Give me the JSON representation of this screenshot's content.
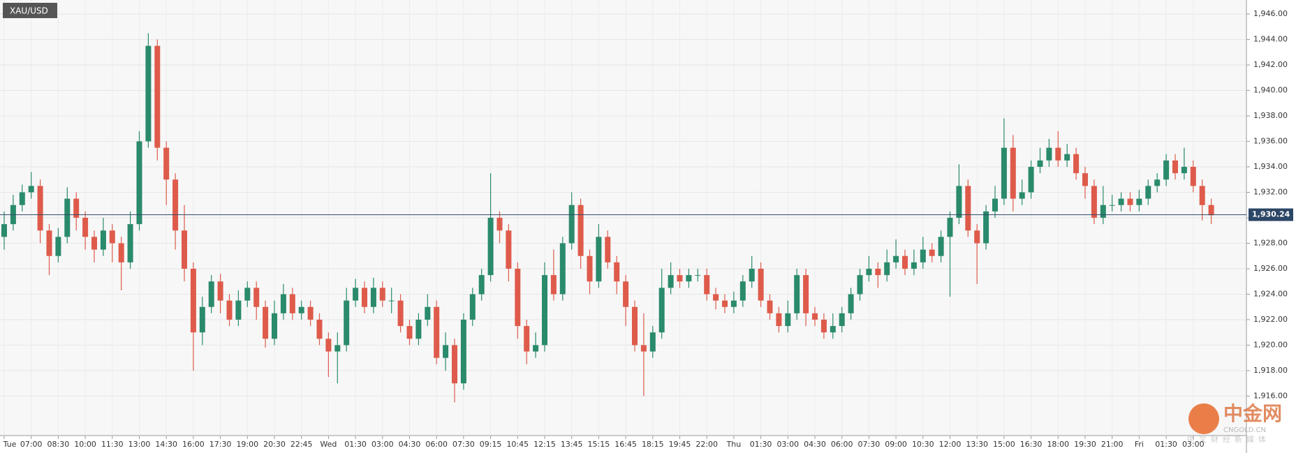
{
  "chart_data": {
    "type": "candlestick",
    "symbol": "XAU/USD",
    "categories": [
      "Tue",
      null,
      null,
      "07:00",
      null,
      null,
      "08:30",
      null,
      null,
      "10:00",
      null,
      null,
      "11:30",
      null,
      null,
      "13:00",
      null,
      null,
      "14:30",
      null,
      null,
      "16:00",
      null,
      null,
      "17:30",
      null,
      null,
      "19:00",
      null,
      null,
      "20:30",
      null,
      null,
      "22:45",
      null,
      null,
      "Wed",
      null,
      null,
      "01:30",
      null,
      null,
      "03:00",
      null,
      null,
      "04:30",
      null,
      null,
      "06:00",
      null,
      null,
      "07:30",
      null,
      null,
      "09:15",
      null,
      null,
      "10:45",
      null,
      null,
      "12:15",
      null,
      null,
      "13:45",
      null,
      null,
      "15:15",
      null,
      null,
      "16:45",
      null,
      null,
      "18:15",
      null,
      null,
      "19:45",
      null,
      null,
      "22:00",
      null,
      null,
      "Thu",
      null,
      null,
      "01:30",
      null,
      null,
      "03:00",
      null,
      null,
      "04:30",
      null,
      null,
      "06:00",
      null,
      null,
      "07:30",
      null,
      null,
      "09:00",
      null,
      null,
      "10:30",
      null,
      null,
      "12:00",
      null,
      null,
      "13:30",
      null,
      null,
      "15:00",
      null,
      null,
      "16:30",
      null,
      null,
      "18:00",
      null,
      null,
      "19:30",
      null,
      null,
      "21:00",
      null,
      null,
      "Fri",
      null,
      null,
      "01:30",
      null,
      null,
      "03:00",
      null,
      null
    ],
    "open": [
      1928.5,
      1929.5,
      1931,
      1932,
      1932.5,
      1929,
      1927,
      1928.5,
      1931.5,
      1930,
      1928.5,
      1927.5,
      1929,
      1928,
      1926.5,
      1929.5,
      1936,
      1943.5,
      1935.5,
      1933,
      1929,
      1926,
      1921,
      1923,
      1925,
      1923.5,
      1922,
      1923.5,
      1924.5,
      1923,
      1920.5,
      1922.5,
      1924,
      1922.5,
      1923,
      1922,
      1920.5,
      1919.5,
      1920,
      1923.5,
      1924.5,
      1923,
      1924.5,
      1923.5,
      1923.5,
      1921.5,
      1920.5,
      1922,
      1923,
      1919,
      1920,
      1917,
      1922,
      1924,
      1925.5,
      1930,
      1929,
      1926,
      1921.5,
      1919.5,
      1920,
      1925.5,
      1924,
      1928,
      1931,
      1927,
      1925,
      1928.5,
      1926.5,
      1925,
      1923,
      1920,
      1919.5,
      1921,
      1924.5,
      1925.5,
      1925,
      1925.5,
      1925.5,
      1924,
      1923.5,
      1923,
      1923.5,
      1925,
      1926,
      1923.5,
      1922.5,
      1921.5,
      1922.5,
      1925.5,
      1922.5,
      1922,
      1921,
      1921.5,
      1922.5,
      1924,
      1925.5,
      1926,
      1925.5,
      1926.5,
      1927,
      1926,
      1926.5,
      1927.5,
      1927,
      1928.5,
      1930,
      1932.5,
      1929,
      1928,
      1930.5,
      1931.5,
      1935.5,
      1931.5,
      1932,
      1934,
      1934.5,
      1935.5,
      1934.5,
      1935,
      1933.5,
      1932.5,
      1930,
      1931,
      1931,
      1931.5,
      1931,
      1931.5,
      1932.5,
      1933,
      1934.5,
      1933.5,
      1934,
      1932.5,
      1931
    ],
    "high": [
      1930.5,
      1931.8,
      1932.6,
      1933.6,
      1933,
      1929.5,
      1929.2,
      1932.4,
      1932,
      1930.5,
      1929,
      1930,
      1929.5,
      1928.5,
      1930.5,
      1936.8,
      1944.5,
      1944,
      1936,
      1933.5,
      1931,
      1926.5,
      1923.8,
      1925.5,
      1925.6,
      1924,
      1924.3,
      1925,
      1925,
      1923.5,
      1923.5,
      1924.8,
      1924.5,
      1923.5,
      1923.5,
      1922.5,
      1921,
      1921,
      1924.5,
      1925.2,
      1925,
      1925.3,
      1925,
      1924.5,
      1924,
      1922,
      1922.5,
      1924,
      1923.5,
      1921,
      1920.5,
      1922.5,
      1924.5,
      1926,
      1933.5,
      1930.5,
      1929.5,
      1926.5,
      1922,
      1921,
      1926.5,
      1927.5,
      1928.5,
      1932,
      1931.5,
      1927.5,
      1929.5,
      1929,
      1927,
      1925.5,
      1923.5,
      1922.5,
      1921.5,
      1926,
      1926.5,
      1926,
      1926,
      1926,
      1926,
      1924.5,
      1924,
      1924.2,
      1925.5,
      1927,
      1926.5,
      1924,
      1923,
      1923.5,
      1926,
      1926,
      1923,
      1922.5,
      1922.5,
      1923,
      1924.5,
      1926,
      1927,
      1926.5,
      1927.5,
      1928.3,
      1927.5,
      1927.5,
      1928.5,
      1928,
      1929,
      1930.5,
      1934.2,
      1933,
      1929.5,
      1931,
      1932.5,
      1937.8,
      1936.5,
      1933,
      1934.5,
      1935.5,
      1936.2,
      1936.8,
      1935.8,
      1935.5,
      1934,
      1933,
      1932.5,
      1931.8,
      1932,
      1932,
      1932.2,
      1933,
      1933.5,
      1935,
      1935,
      1935.5,
      1934.5,
      1933,
      1931.5
    ],
    "low": [
      1927.5,
      1929,
      1930.5,
      1931.5,
      1928,
      1925.5,
      1926.5,
      1928,
      1929,
      1927.5,
      1926.5,
      1927,
      1926.5,
      1924.3,
      1926,
      1929,
      1935.5,
      1934.5,
      1931,
      1927.5,
      1925,
      1918,
      1920,
      1922.5,
      1922.5,
      1921.5,
      1921.5,
      1923,
      1922,
      1919.8,
      1920,
      1922,
      1922,
      1922,
      1921.5,
      1920,
      1917.5,
      1917,
      1919.5,
      1923,
      1922.5,
      1922.5,
      1923,
      1922.5,
      1921,
      1920,
      1920,
      1921.5,
      1918.5,
      1918,
      1915.5,
      1916.5,
      1921.5,
      1923.5,
      1925,
      1928,
      1925,
      1920.5,
      1918.5,
      1919,
      1919.5,
      1923.5,
      1923.5,
      1927.5,
      1926,
      1924,
      1924.5,
      1926,
      1924,
      1921.5,
      1919.5,
      1916,
      1919,
      1920.5,
      1924,
      1924.5,
      1924.5,
      1925,
      1923.5,
      1922.8,
      1922.5,
      1922.5,
      1923,
      1924.5,
      1923,
      1922,
      1921,
      1921,
      1922,
      1921.5,
      1921.5,
      1920.5,
      1920.5,
      1921,
      1922,
      1923.5,
      1925,
      1924.5,
      1925,
      1926,
      1925.5,
      1925.5,
      1926,
      1926.5,
      1926.5,
      1923.8,
      1929.5,
      1928.5,
      1924.8,
      1927.5,
      1930,
      1931,
      1930.5,
      1931,
      1931.5,
      1933.5,
      1934,
      1934,
      1934,
      1933,
      1931.5,
      1929.5,
      1929.5,
      1930.5,
      1930.5,
      1930.5,
      1930.5,
      1931,
      1932,
      1932.5,
      1933,
      1933,
      1932,
      1929.8,
      1929.5
    ],
    "close": [
      1929.5,
      1931,
      1932,
      1932.5,
      1929,
      1927,
      1928.5,
      1931.5,
      1930,
      1928.5,
      1927.5,
      1929,
      1928,
      1926.5,
      1929.5,
      1936,
      1943.5,
      1935.5,
      1933,
      1929,
      1926,
      1921,
      1923,
      1925,
      1923.5,
      1922,
      1923.5,
      1924.5,
      1923,
      1920.5,
      1922.5,
      1924,
      1922.5,
      1923,
      1922,
      1920.5,
      1919.5,
      1920,
      1923.5,
      1924.5,
      1923,
      1924.5,
      1923.5,
      1923.5,
      1921.5,
      1920.5,
      1922,
      1923,
      1919,
      1920,
      1917,
      1922,
      1924,
      1925.5,
      1930,
      1929,
      1926,
      1921.5,
      1919.5,
      1920,
      1925.5,
      1924,
      1928,
      1931,
      1927,
      1925,
      1928.5,
      1926.5,
      1925,
      1923,
      1920,
      1919.5,
      1921,
      1924.5,
      1925.5,
      1925,
      1925.5,
      1925.5,
      1924,
      1923.5,
      1923,
      1923.5,
      1925,
      1926,
      1923.5,
      1922.5,
      1921.5,
      1922.5,
      1925.5,
      1922.5,
      1922,
      1921,
      1921.5,
      1922.5,
      1924,
      1925.5,
      1926,
      1925.5,
      1926.5,
      1927,
      1926,
      1926.5,
      1927.5,
      1927,
      1928.5,
      1930,
      1932.5,
      1929,
      1928,
      1930.5,
      1931.5,
      1935.5,
      1931.5,
      1932,
      1934,
      1934.5,
      1935.5,
      1934.5,
      1935,
      1933.5,
      1932.5,
      1930,
      1931,
      1931,
      1931.5,
      1931,
      1931.5,
      1932.5,
      1933,
      1934.5,
      1933.5,
      1934,
      1932.5,
      1931,
      1930.2
    ],
    "up_color": "#2a8a6c",
    "down_color": "#de5b4b",
    "ylim": [
      1912.9,
      1947.1
    ],
    "yticks": [
      {
        "value": 1916,
        "label": "1,916.00"
      },
      {
        "value": 1918,
        "label": "1,918.00"
      },
      {
        "value": 1920,
        "label": "1,920.00"
      },
      {
        "value": 1922,
        "label": "1,922.00"
      },
      {
        "value": 1924,
        "label": "1,924.00"
      },
      {
        "value": 1926,
        "label": "1,926.00"
      },
      {
        "value": 1928,
        "label": "1,928.00"
      },
      {
        "value": 1930,
        "label": "1,930.00"
      },
      {
        "value": 1932,
        "label": "1,932.00"
      },
      {
        "value": 1934,
        "label": "1,934.00"
      },
      {
        "value": 1936,
        "label": "1,936.00"
      },
      {
        "value": 1938,
        "label": "1,938.00"
      },
      {
        "value": 1940,
        "label": "1,940.00"
      },
      {
        "value": 1942,
        "label": "1,942.00"
      },
      {
        "value": 1944,
        "label": "1,944.00"
      },
      {
        "value": 1946,
        "label": "1,946.00"
      }
    ],
    "grid": true,
    "last_price": {
      "value": 1930.24,
      "label": "1,930.24"
    },
    "watermark": {
      "logo": "中金网",
      "domain": "CNGOLD.CN",
      "slogan": "中文财经新媒体"
    }
  }
}
